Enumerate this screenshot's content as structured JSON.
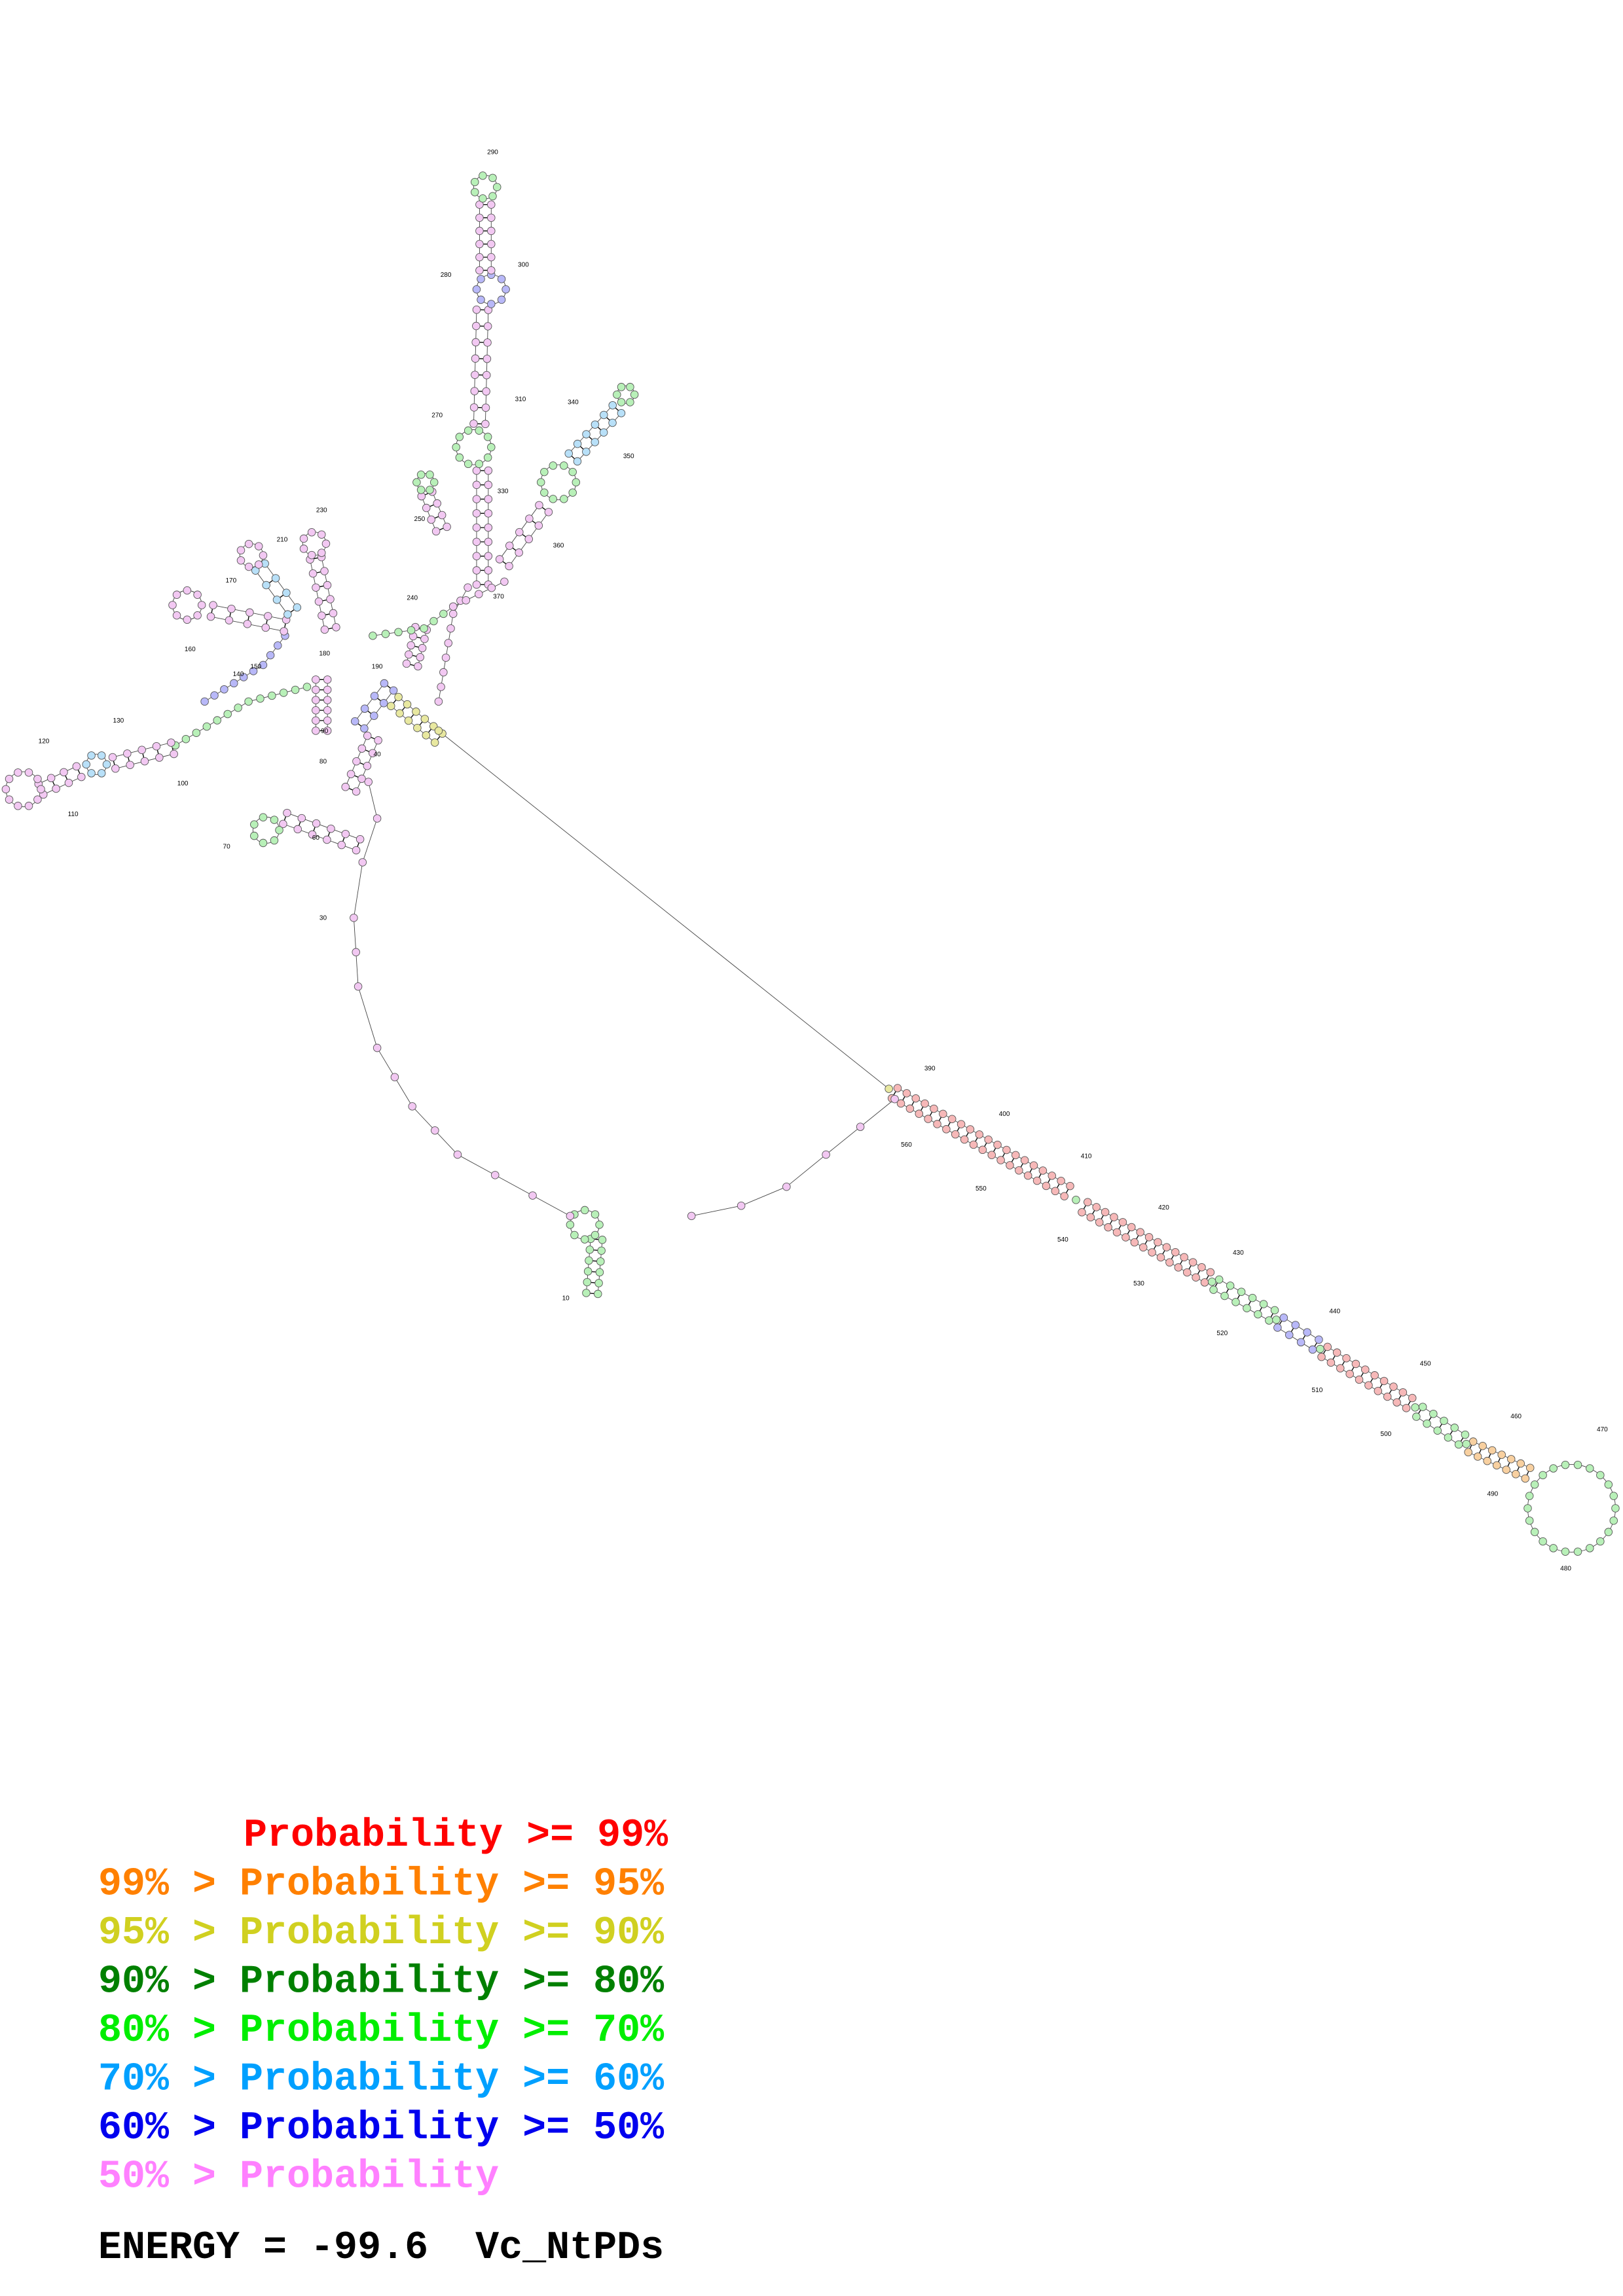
{
  "positions": [
    10,
    30,
    40,
    60,
    70,
    80,
    90,
    100,
    110,
    120,
    130,
    140,
    150,
    160,
    170,
    180,
    190,
    210,
    230,
    240,
    250,
    270,
    280,
    290,
    300,
    310,
    330,
    340,
    350,
    360,
    370,
    390,
    400,
    410,
    420,
    430,
    440,
    450,
    460,
    470,
    480,
    490,
    500,
    510,
    520,
    530,
    540,
    550,
    560
  ],
  "legend": [
    {
      "text": "Probability >= 99%",
      "color": "#ff0000"
    },
    {
      "text": "99% > Probability >= 95%",
      "color": "#ff8000"
    },
    {
      "text": "95% > Probability >= 90%",
      "color": "#d0d020"
    },
    {
      "text": "90% > Probability >= 80%",
      "color": "#008000"
    },
    {
      "text": "80% > Probability >= 70%",
      "color": "#00ee00"
    },
    {
      "text": "70% > Probability >= 60%",
      "color": "#00a0ff"
    },
    {
      "text": "60% > Probability >= 50%",
      "color": "#0000ee"
    },
    {
      "text": "50% > Probability",
      "color": "#ff80ff"
    }
  ],
  "energy": "ENERGY = -99.6  Vc_NtPDs"
}
